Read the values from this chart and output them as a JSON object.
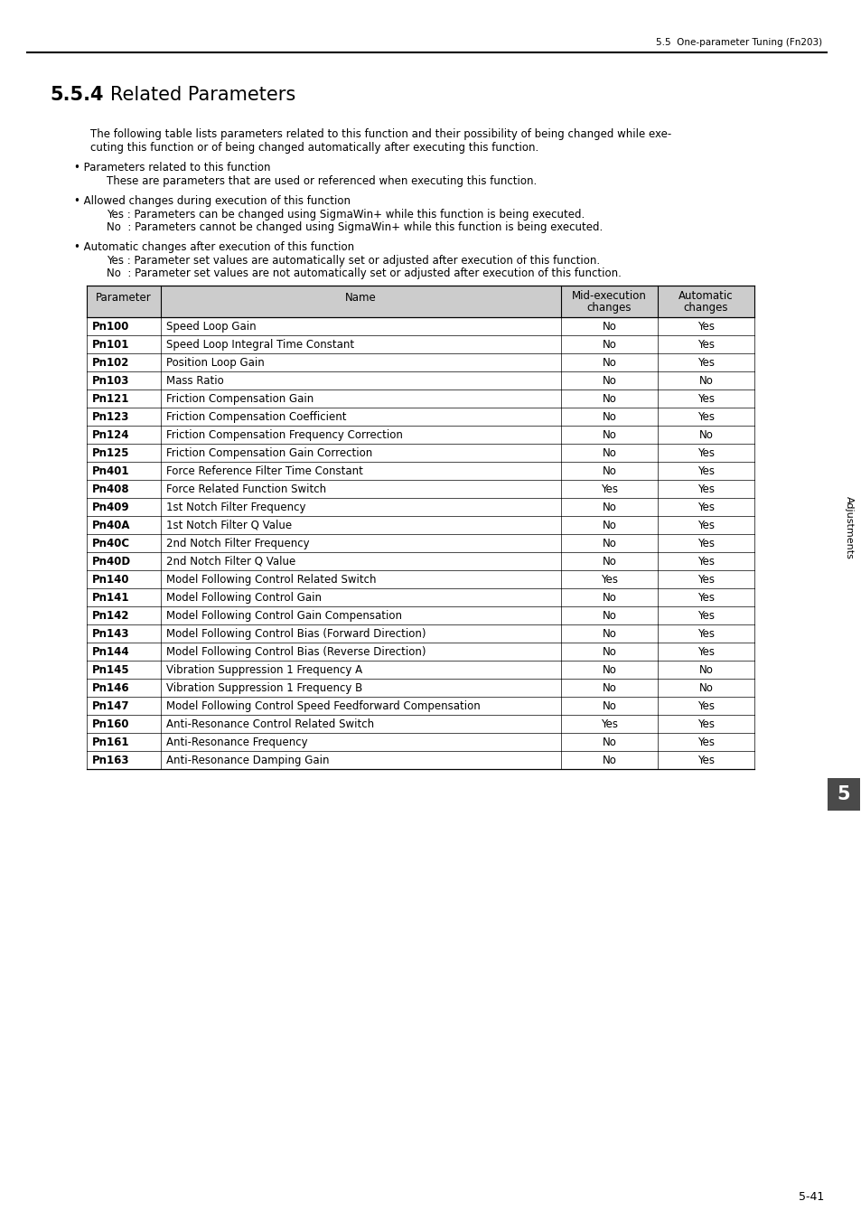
{
  "page_header_right": "5.5  One-parameter Tuning (Fn203)",
  "section_number": "5.5.4",
  "section_title": "Related Parameters",
  "intro_line1": "The following table lists parameters related to this function and their possibility of being changed while exe-",
  "intro_line2": "cuting this function or of being changed automatically after executing this function.",
  "bullet1_title": "• Parameters related to this function",
  "bullet1_body": "These are parameters that are used or referenced when executing this function.",
  "bullet2_title": "• Allowed changes during execution of this function",
  "bullet2_body1": "Yes : Parameters can be changed using SigmaWin+ while this function is being executed.",
  "bullet2_body2": "No  : Parameters cannot be changed using SigmaWin+ while this function is being executed.",
  "bullet3_title": "• Automatic changes after execution of this function",
  "bullet3_body1": "Yes : Parameter set values are automatically set or adjusted after execution of this function.",
  "bullet3_body2": "No  : Parameter set values are not automatically set or adjusted after execution of this function.",
  "table_headers": [
    "Parameter",
    "Name",
    "Mid-execution\nchanges",
    "Automatic\nchanges"
  ],
  "table_rows": [
    [
      "Pn100",
      "Speed Loop Gain",
      "No",
      "Yes"
    ],
    [
      "Pn101",
      "Speed Loop Integral Time Constant",
      "No",
      "Yes"
    ],
    [
      "Pn102",
      "Position Loop Gain",
      "No",
      "Yes"
    ],
    [
      "Pn103",
      "Mass Ratio",
      "No",
      "No"
    ],
    [
      "Pn121",
      "Friction Compensation Gain",
      "No",
      "Yes"
    ],
    [
      "Pn123",
      "Friction Compensation Coefficient",
      "No",
      "Yes"
    ],
    [
      "Pn124",
      "Friction Compensation Frequency Correction",
      "No",
      "No"
    ],
    [
      "Pn125",
      "Friction Compensation Gain Correction",
      "No",
      "Yes"
    ],
    [
      "Pn401",
      "Force Reference Filter Time Constant",
      "No",
      "Yes"
    ],
    [
      "Pn408",
      "Force Related Function Switch",
      "Yes",
      "Yes"
    ],
    [
      "Pn409",
      "1st Notch Filter Frequency",
      "No",
      "Yes"
    ],
    [
      "Pn40A",
      "1st Notch Filter Q Value",
      "No",
      "Yes"
    ],
    [
      "Pn40C",
      "2nd Notch Filter Frequency",
      "No",
      "Yes"
    ],
    [
      "Pn40D",
      "2nd Notch Filter Q Value",
      "No",
      "Yes"
    ],
    [
      "Pn140",
      "Model Following Control Related Switch",
      "Yes",
      "Yes"
    ],
    [
      "Pn141",
      "Model Following Control Gain",
      "No",
      "Yes"
    ],
    [
      "Pn142",
      "Model Following Control Gain Compensation",
      "No",
      "Yes"
    ],
    [
      "Pn143",
      "Model Following Control Bias (Forward Direction)",
      "No",
      "Yes"
    ],
    [
      "Pn144",
      "Model Following Control Bias (Reverse Direction)",
      "No",
      "Yes"
    ],
    [
      "Pn145",
      "Vibration Suppression 1 Frequency A",
      "No",
      "No"
    ],
    [
      "Pn146",
      "Vibration Suppression 1 Frequency B",
      "No",
      "No"
    ],
    [
      "Pn147",
      "Model Following Control Speed Feedforward Compensation",
      "No",
      "Yes"
    ],
    [
      "Pn160",
      "Anti-Resonance Control Related Switch",
      "Yes",
      "Yes"
    ],
    [
      "Pn161",
      "Anti-Resonance Frequency",
      "No",
      "Yes"
    ],
    [
      "Pn163",
      "Anti-Resonance Damping Gain",
      "No",
      "Yes"
    ]
  ],
  "sidebar_text": "Adjustments",
  "page_number": "5-41",
  "chapter_number": "5",
  "bg_color": "#ffffff",
  "header_bg": "#cccccc",
  "border_color": "#000000"
}
